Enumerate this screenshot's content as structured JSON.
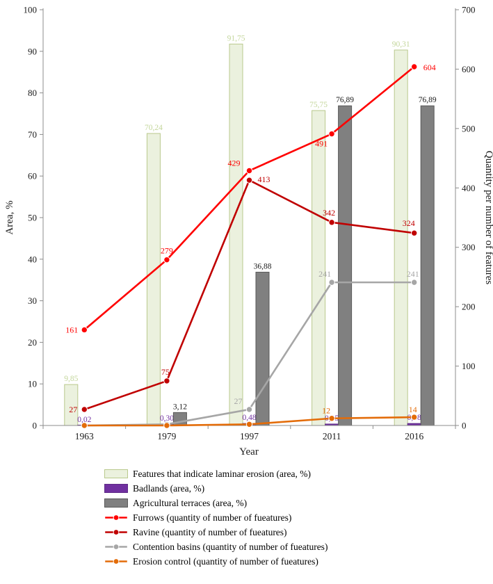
{
  "chart_data": {
    "type": "combo",
    "title": "",
    "categories": [
      "1963",
      "1979",
      "1997",
      "2011",
      "2016"
    ],
    "x_axis": {
      "label": "Year"
    },
    "y_axis_left": {
      "label": "Area, %",
      "min": 0,
      "max": 100,
      "step": 10
    },
    "y_axis_right": {
      "label": "Quantity per number of features",
      "min": 0,
      "max": 700,
      "step": 100
    },
    "legend_position": "bottom",
    "bar_series": [
      {
        "id": "laminar",
        "name": "Features that indicate laminar erosion (area, %)",
        "color": "#ebf1de",
        "border": "#b9c98c",
        "label_color": "#c3d69b",
        "values": [
          9.85,
          70.24,
          91.75,
          75.75,
          90.31
        ],
        "labels": [
          "9,85",
          "70,24",
          "91,75",
          "75,75",
          "90,31"
        ]
      },
      {
        "id": "badlands",
        "name": "Badlands (area, %)",
        "color": "#7030a0",
        "border": "#5f2a87",
        "label_color": "#7030a0",
        "values": [
          0.02,
          0.3,
          0.48,
          0.35,
          0.48
        ],
        "labels": [
          "0,02",
          "0,30",
          "0,48",
          "0,35",
          "0,48"
        ]
      },
      {
        "id": "terraces",
        "name": "Agricultural terraces (area,  %)",
        "color": "#808080",
        "border": "#595959",
        "label_color": "#1a1a1a",
        "values": [
          0,
          3.12,
          36.88,
          76.89,
          76.89
        ],
        "labels": [
          "",
          "3,12",
          "36,88",
          "76,89",
          "76,89"
        ]
      }
    ],
    "line_series": [
      {
        "id": "furrows",
        "name": "Furrows (quantity of number of fueatures)",
        "color": "#ff0000",
        "values": [
          161,
          279,
          429,
          491,
          604
        ],
        "labels": [
          "161",
          "279",
          "429",
          "491",
          "604"
        ]
      },
      {
        "id": "ravine",
        "name": "Ravine (quantity of number of fueatures)",
        "color": "#c00000",
        "values": [
          27,
          75,
          413,
          342,
          324
        ],
        "labels": [
          "27",
          "75",
          "413",
          "342",
          "324"
        ]
      },
      {
        "id": "contention",
        "name": "Contention basins (quantity of number of fueatures)",
        "color": "#a6a6a6",
        "values": [
          0,
          2,
          27,
          241,
          241
        ],
        "labels": [
          "",
          "",
          "27",
          "241",
          "241"
        ]
      },
      {
        "id": "erosion",
        "name": "Erosion control (quantity of number of fueatures)",
        "color": "#e36c09",
        "values": [
          0,
          0,
          2,
          12,
          14
        ],
        "labels": [
          "",
          "",
          "",
          "12",
          "14"
        ]
      }
    ]
  }
}
